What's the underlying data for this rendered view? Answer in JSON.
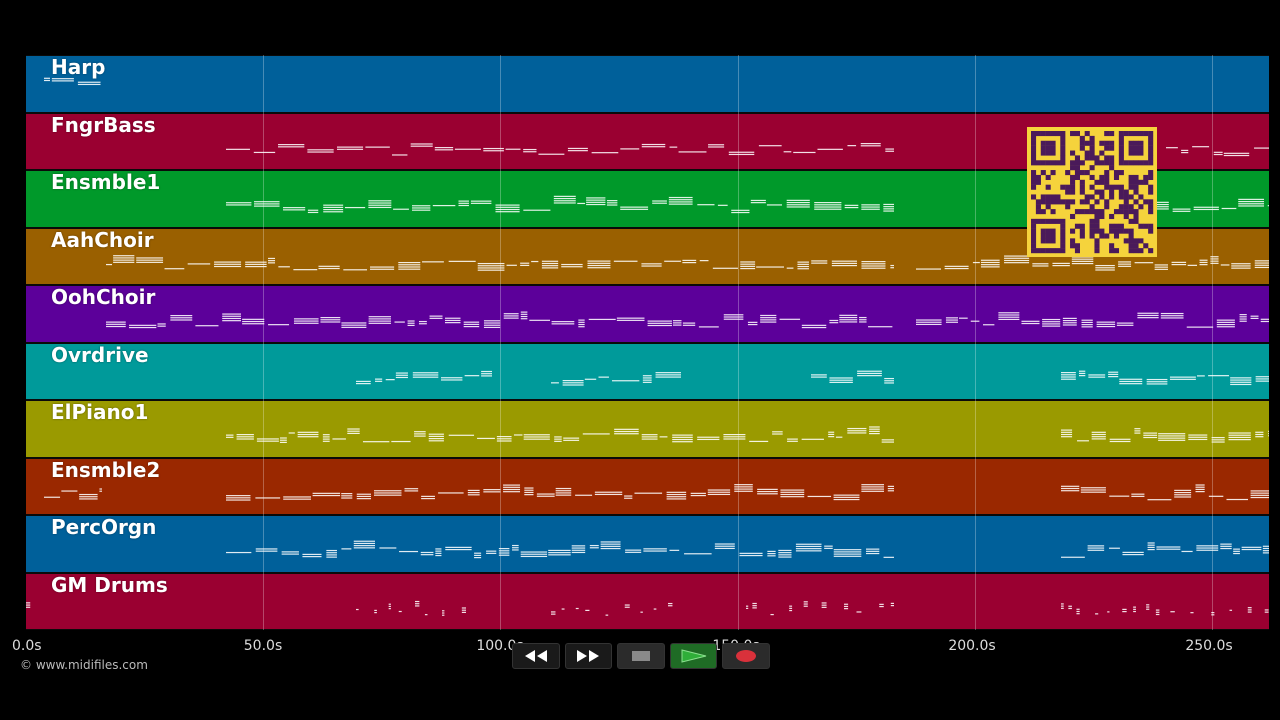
{
  "tracks": [
    {
      "name": "Harp",
      "color": "#00609a"
    },
    {
      "name": "FngrBass",
      "color": "#9a0031"
    },
    {
      "name": "Ensmble1",
      "color": "#00992a"
    },
    {
      "name": "AahChoir",
      "color": "#9a6000"
    },
    {
      "name": "OohChoir",
      "color": "#5c009a"
    },
    {
      "name": "Ovrdrive",
      "color": "#009a9a"
    },
    {
      "name": "ElPiano1",
      "color": "#9a9a00"
    },
    {
      "name": "Ensmble2",
      "color": "#9a2800"
    },
    {
      "name": "PercOrgn",
      "color": "#00609a"
    },
    {
      "name": "GM Drums",
      "color": "#9a0031"
    }
  ],
  "timeline": {
    "duration_s": 262,
    "ticks": [
      {
        "t": 0,
        "label": "0.0s"
      },
      {
        "t": 50,
        "label": "50.0s"
      },
      {
        "t": 100,
        "label": "100.0s"
      },
      {
        "t": 150,
        "label": "150.0s"
      },
      {
        "t": 200,
        "label": "200.0s"
      },
      {
        "t": 250,
        "label": "250.0s"
      }
    ]
  },
  "footer": {
    "copyright": "© www.midifiles.com"
  },
  "transport": {
    "buttons": [
      {
        "name": "rewind-button",
        "icon": "rewind-icon"
      },
      {
        "name": "fast-forward-button",
        "icon": "fast-forward-icon"
      },
      {
        "name": "stop-button",
        "icon": "stop-icon"
      },
      {
        "name": "play-button",
        "icon": "play-icon"
      },
      {
        "name": "record-button",
        "icon": "record-icon"
      }
    ],
    "colors": {
      "play": "#2fae39",
      "record": "#d9313b",
      "stop": "#8a8a8a"
    }
  },
  "qr": {
    "fg": "#4a1a5a",
    "bg": "#f5d33c"
  }
}
